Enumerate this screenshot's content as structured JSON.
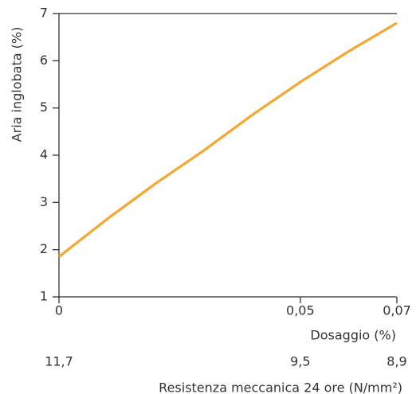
{
  "chart_data": {
    "type": "line",
    "y_label": "Aria inglobata (%)",
    "x_label": "Dosaggio (%)",
    "x2_label": "Resistenza meccanica 24 ore (N/mm²)",
    "x": [
      0,
      0.01,
      0.02,
      0.03,
      0.04,
      0.05,
      0.06,
      0.07
    ],
    "values": [
      1.85,
      2.65,
      3.4,
      4.1,
      4.85,
      5.55,
      6.2,
      6.8
    ],
    "color": "#f5a731",
    "xlim": [
      0,
      0.07
    ],
    "xticks": [
      0,
      {
        "value": 0.05,
        "label": "0,05"
      },
      {
        "value": 0.07,
        "label": "0,07"
      }
    ],
    "x2ticks": [
      {
        "value": 11.7,
        "label": "11,7"
      },
      {
        "value": 9.5,
        "label": "9,5"
      },
      {
        "value": 8.9,
        "label": "8,9"
      }
    ],
    "ylim": [
      1,
      7
    ],
    "yticks": [
      1,
      2,
      3,
      4,
      5,
      6,
      7
    ],
    "grid": false
  }
}
